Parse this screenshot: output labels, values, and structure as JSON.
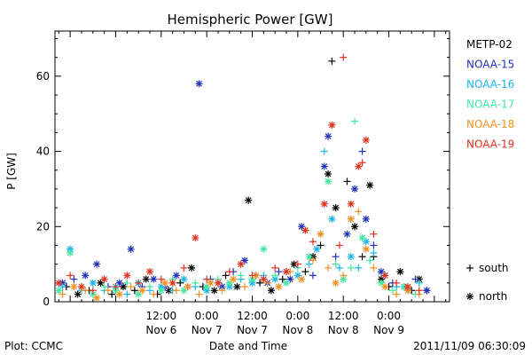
{
  "chart_data": {
    "type": "scatter",
    "title": "Hemispheric Power [GW]",
    "ylabel": "P [GW]",
    "xlabel": "Date and Time",
    "ylim": [
      0,
      72
    ],
    "yticks": [
      0,
      20,
      40,
      60
    ],
    "xlim": [
      -16,
      88
    ],
    "x_unit": "hours since 2011-11-06 00:00 UT",
    "xticks": [
      {
        "x": 12,
        "time": "12:00",
        "date": "Nov 6"
      },
      {
        "x": 24,
        "time": "0:00",
        "date": "Nov 7"
      },
      {
        "x": 36,
        "time": "12:00",
        "date": "Nov 7"
      },
      {
        "x": 48,
        "time": "0:00",
        "date": "Nov 8"
      },
      {
        "x": 60,
        "time": "12:00",
        "date": "Nov 8"
      },
      {
        "x": 72,
        "time": "0:00",
        "date": "Nov 9"
      }
    ],
    "legend": {
      "placement": "right",
      "entries": [
        {
          "name": "METP-02",
          "color": "#000000"
        },
        {
          "name": "NOAA-15",
          "color": "#1f2fbf"
        },
        {
          "name": "NOAA-16",
          "color": "#19b4ea"
        },
        {
          "name": "NOAA-17",
          "color": "#3ee8a0"
        },
        {
          "name": "NOAA-18",
          "color": "#f0901e"
        },
        {
          "name": "NOAA-19",
          "color": "#e0301e"
        }
      ],
      "marker_key": [
        {
          "marker": "+",
          "label": "south"
        },
        {
          "marker": "*",
          "label": "north"
        }
      ]
    },
    "series": [
      {
        "name": "METP-02",
        "color": "#000000",
        "points": [
          [
            -13,
            4,
            "+"
          ],
          [
            -10,
            2,
            "*"
          ],
          [
            -7,
            3,
            "+"
          ],
          [
            -4,
            5,
            "*"
          ],
          [
            -1,
            2,
            "+"
          ],
          [
            2,
            4,
            "*"
          ],
          [
            5,
            3,
            "+"
          ],
          [
            8,
            6,
            "*"
          ],
          [
            11,
            2,
            "+"
          ],
          [
            14,
            3,
            "*"
          ],
          [
            17,
            5,
            "+"
          ],
          [
            20,
            9,
            "*"
          ],
          [
            23,
            4,
            "+"
          ],
          [
            26,
            3,
            "*"
          ],
          [
            29,
            7,
            "+"
          ],
          [
            32,
            4,
            "*"
          ],
          [
            35,
            27,
            "*"
          ],
          [
            38,
            5,
            "+"
          ],
          [
            41,
            3,
            "*"
          ],
          [
            44,
            6,
            "+"
          ],
          [
            47,
            10,
            "*"
          ],
          [
            50,
            8,
            "+"
          ],
          [
            52,
            12,
            "*"
          ],
          [
            54,
            15,
            "+"
          ],
          [
            56,
            34,
            "*"
          ],
          [
            57,
            64,
            "+"
          ],
          [
            58,
            25,
            "*"
          ],
          [
            61,
            32,
            "+"
          ],
          [
            63,
            20,
            "*"
          ],
          [
            65,
            12,
            "+"
          ],
          [
            67,
            31,
            "*"
          ],
          [
            68,
            12,
            "+"
          ],
          [
            70,
            6,
            "*"
          ],
          [
            72,
            4,
            "+"
          ],
          [
            75,
            8,
            "*"
          ],
          [
            78,
            3,
            "+"
          ],
          [
            80,
            6,
            "*"
          ],
          [
            82,
            3,
            "+"
          ]
        ]
      },
      {
        "name": "NOAA-15",
        "color": "#1f2fbf",
        "points": [
          [
            -14,
            5,
            "*"
          ],
          [
            -11,
            6,
            "+"
          ],
          [
            -8,
            7,
            "*"
          ],
          [
            -5,
            10,
            "*"
          ],
          [
            -2,
            4,
            "+"
          ],
          [
            1,
            5,
            "*"
          ],
          [
            4,
            14,
            "*"
          ],
          [
            7,
            4,
            "+"
          ],
          [
            10,
            6,
            "*"
          ],
          [
            13,
            4,
            "+"
          ],
          [
            16,
            7,
            "*"
          ],
          [
            19,
            4,
            "+"
          ],
          [
            22,
            58,
            "*"
          ],
          [
            25,
            6,
            "+"
          ],
          [
            28,
            4,
            "*"
          ],
          [
            31,
            8,
            "+"
          ],
          [
            34,
            11,
            "*"
          ],
          [
            37,
            7,
            "+"
          ],
          [
            40,
            5,
            "*"
          ],
          [
            43,
            8,
            "+"
          ],
          [
            46,
            6,
            "*"
          ],
          [
            49,
            20,
            "*"
          ],
          [
            52,
            7,
            "+"
          ],
          [
            55,
            36,
            "*"
          ],
          [
            56,
            44,
            "*"
          ],
          [
            58,
            12,
            "+"
          ],
          [
            61,
            18,
            "*"
          ],
          [
            63,
            30,
            "*"
          ],
          [
            65,
            40,
            "+"
          ],
          [
            66,
            22,
            "*"
          ],
          [
            68,
            15,
            "+"
          ],
          [
            70,
            8,
            "*"
          ],
          [
            73,
            5,
            "+"
          ],
          [
            76,
            4,
            "*"
          ],
          [
            79,
            6,
            "+"
          ],
          [
            82,
            3,
            "*"
          ]
        ]
      },
      {
        "name": "NOAA-16",
        "color": "#19b4ea",
        "points": [
          [
            -14,
            4,
            "+"
          ],
          [
            -12,
            14,
            "*"
          ],
          [
            -9,
            3,
            "+"
          ],
          [
            -6,
            5,
            "*"
          ],
          [
            -3,
            3,
            "+"
          ],
          [
            0,
            4,
            "*"
          ],
          [
            3,
            2,
            "+"
          ],
          [
            6,
            5,
            "*"
          ],
          [
            9,
            3,
            "+"
          ],
          [
            12,
            4,
            "*"
          ],
          [
            15,
            3,
            "+"
          ],
          [
            18,
            6,
            "*"
          ],
          [
            21,
            4,
            "+"
          ],
          [
            24,
            3,
            "*"
          ],
          [
            27,
            5,
            "+"
          ],
          [
            30,
            4,
            "*"
          ],
          [
            33,
            6,
            "+"
          ],
          [
            36,
            5,
            "*"
          ],
          [
            39,
            7,
            "+"
          ],
          [
            42,
            6,
            "*"
          ],
          [
            45,
            8,
            "+"
          ],
          [
            48,
            7,
            "*"
          ],
          [
            51,
            10,
            "+"
          ],
          [
            53,
            14,
            "*"
          ],
          [
            55,
            40,
            "+"
          ],
          [
            57,
            22,
            "*"
          ],
          [
            59,
            9,
            "+"
          ],
          [
            62,
            12,
            "*"
          ],
          [
            64,
            9,
            "+"
          ],
          [
            66,
            16,
            "*"
          ],
          [
            68,
            13,
            "+"
          ],
          [
            71,
            7,
            "*"
          ],
          [
            74,
            4,
            "+"
          ],
          [
            77,
            3,
            "*"
          ],
          [
            80,
            5,
            "+"
          ]
        ]
      },
      {
        "name": "NOAA-17",
        "color": "#3ee8a0",
        "points": [
          [
            -15,
            3,
            "*"
          ],
          [
            -12,
            13,
            "*"
          ],
          [
            -9,
            4,
            "+"
          ],
          [
            -6,
            2,
            "*"
          ],
          [
            -3,
            4,
            "+"
          ],
          [
            0,
            3,
            "*"
          ],
          [
            3,
            5,
            "+"
          ],
          [
            6,
            2,
            "*"
          ],
          [
            9,
            4,
            "+"
          ],
          [
            12,
            3,
            "*"
          ],
          [
            15,
            6,
            "+"
          ],
          [
            18,
            3,
            "*"
          ],
          [
            21,
            5,
            "+"
          ],
          [
            24,
            4,
            "*"
          ],
          [
            27,
            6,
            "+"
          ],
          [
            30,
            5,
            "*"
          ],
          [
            33,
            7,
            "+"
          ],
          [
            36,
            6,
            "*"
          ],
          [
            39,
            14,
            "*"
          ],
          [
            42,
            7,
            "+"
          ],
          [
            45,
            5,
            "*"
          ],
          [
            48,
            9,
            "+"
          ],
          [
            51,
            12,
            "*"
          ],
          [
            54,
            18,
            "+"
          ],
          [
            56,
            32,
            "*"
          ],
          [
            58,
            10,
            "+"
          ],
          [
            60,
            6,
            "*"
          ],
          [
            62,
            9,
            "+"
          ],
          [
            63,
            48,
            "+"
          ],
          [
            65,
            17,
            "*"
          ],
          [
            67,
            11,
            "+"
          ],
          [
            70,
            5,
            "*"
          ],
          [
            73,
            3,
            "+"
          ],
          [
            76,
            4,
            "*"
          ],
          [
            79,
            2,
            "+"
          ]
        ]
      },
      {
        "name": "NOAA-18",
        "color": "#f0901e",
        "points": [
          [
            -14,
            2,
            "+"
          ],
          [
            -11,
            4,
            "*"
          ],
          [
            -8,
            3,
            "+"
          ],
          [
            -5,
            1,
            "*"
          ],
          [
            -2,
            3,
            "+"
          ],
          [
            1,
            2,
            "*"
          ],
          [
            4,
            4,
            "+"
          ],
          [
            7,
            3,
            "*"
          ],
          [
            10,
            2,
            "+"
          ],
          [
            13,
            5,
            "*"
          ],
          [
            16,
            3,
            "+"
          ],
          [
            19,
            4,
            "*"
          ],
          [
            22,
            2,
            "+"
          ],
          [
            25,
            5,
            "*"
          ],
          [
            28,
            3,
            "+"
          ],
          [
            31,
            6,
            "*"
          ],
          [
            34,
            4,
            "+"
          ],
          [
            37,
            7,
            "*"
          ],
          [
            40,
            5,
            "+"
          ],
          [
            43,
            4,
            "*"
          ],
          [
            46,
            8,
            "+"
          ],
          [
            49,
            6,
            "*"
          ],
          [
            52,
            11,
            "+"
          ],
          [
            54,
            18,
            "*"
          ],
          [
            56,
            9,
            "+"
          ],
          [
            58,
            5,
            "*"
          ],
          [
            60,
            7,
            "+"
          ],
          [
            62,
            22,
            "*"
          ],
          [
            64,
            24,
            "+"
          ],
          [
            66,
            14,
            "*"
          ],
          [
            68,
            9,
            "+"
          ],
          [
            71,
            4,
            "*"
          ],
          [
            74,
            2,
            "+"
          ],
          [
            77,
            3,
            "*"
          ],
          [
            80,
            2,
            "+"
          ]
        ]
      },
      {
        "name": "NOAA-19",
        "color": "#e0301e",
        "points": [
          [
            -15,
            5,
            "*"
          ],
          [
            -12,
            7,
            "+"
          ],
          [
            -9,
            4,
            "*"
          ],
          [
            -6,
            3,
            "+"
          ],
          [
            -3,
            6,
            "*"
          ],
          [
            0,
            4,
            "+"
          ],
          [
            3,
            7,
            "*"
          ],
          [
            6,
            5,
            "+"
          ],
          [
            9,
            8,
            "*"
          ],
          [
            12,
            6,
            "+"
          ],
          [
            15,
            5,
            "*"
          ],
          [
            18,
            9,
            "+"
          ],
          [
            21,
            17,
            "*"
          ],
          [
            24,
            6,
            "+"
          ],
          [
            27,
            5,
            "*"
          ],
          [
            30,
            8,
            "+"
          ],
          [
            33,
            10,
            "*"
          ],
          [
            36,
            7,
            "+"
          ],
          [
            39,
            6,
            "*"
          ],
          [
            42,
            9,
            "+"
          ],
          [
            45,
            8,
            "*"
          ],
          [
            48,
            10,
            "+"
          ],
          [
            50,
            19,
            "*"
          ],
          [
            52,
            16,
            "+"
          ],
          [
            55,
            26,
            "*"
          ],
          [
            57,
            47,
            "*"
          ],
          [
            59,
            15,
            "+"
          ],
          [
            60,
            65,
            "+"
          ],
          [
            62,
            26,
            "*"
          ],
          [
            64,
            36,
            "*"
          ],
          [
            65,
            37,
            "+"
          ],
          [
            66,
            43,
            "*"
          ],
          [
            68,
            18,
            "+"
          ],
          [
            71,
            7,
            "*"
          ],
          [
            74,
            5,
            "+"
          ],
          [
            77,
            4,
            "*"
          ],
          [
            80,
            3,
            "+"
          ]
        ]
      }
    ]
  },
  "footer": {
    "plot_credit": "Plot: CCMC",
    "timestamp": "2011/11/09 06:30:09"
  }
}
